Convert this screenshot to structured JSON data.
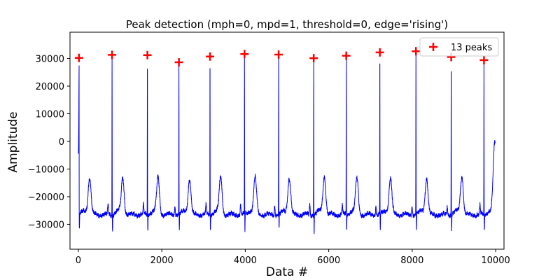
{
  "chart_data": {
    "type": "line",
    "title": "Peak detection (mph=0, mpd=1, threshold=0, edge='rising')",
    "xlabel": "Data #",
    "ylabel": "Amplitude",
    "xlim": [
      -200,
      10200
    ],
    "ylim": [
      -39000,
      39500
    ],
    "xticks": [
      0,
      2000,
      4000,
      6000,
      8000,
      10000
    ],
    "xtick_labels": [
      "0",
      "2000",
      "4000",
      "6000",
      "8000",
      "10000"
    ],
    "yticks": [
      -30000,
      -20000,
      -10000,
      0,
      10000,
      20000,
      30000
    ],
    "ytick_labels": [
      "−30000",
      "−20000",
      "−10000",
      "0",
      "10000",
      "20000",
      "30000"
    ],
    "grid": false,
    "legend_position": "top-right",
    "series": [
      {
        "kind": "signal",
        "color": "#0000ff",
        "beats_x": [
          15,
          808,
          1655,
          2410,
          3155,
          3982,
          4800,
          5640,
          6420,
          7225,
          8090,
          8935,
          9720
        ],
        "beats_peak": [
          30200,
          31300,
          31200,
          28600,
          30700,
          31600,
          31400,
          30100,
          31000,
          32200,
          32600,
          30500,
          29400
        ],
        "x_end": 9990,
        "baseline": -26500
      },
      {
        "name": "13 peaks",
        "kind": "markers",
        "marker": "+",
        "color": "#ff0000",
        "x": [
          15,
          808,
          1655,
          2410,
          3155,
          3982,
          4800,
          5640,
          6420,
          7225,
          8090,
          8935,
          9720
        ],
        "y": [
          30200,
          31300,
          31200,
          28600,
          30700,
          31600,
          31400,
          30100,
          31000,
          32200,
          32600,
          30500,
          29400
        ]
      }
    ]
  }
}
